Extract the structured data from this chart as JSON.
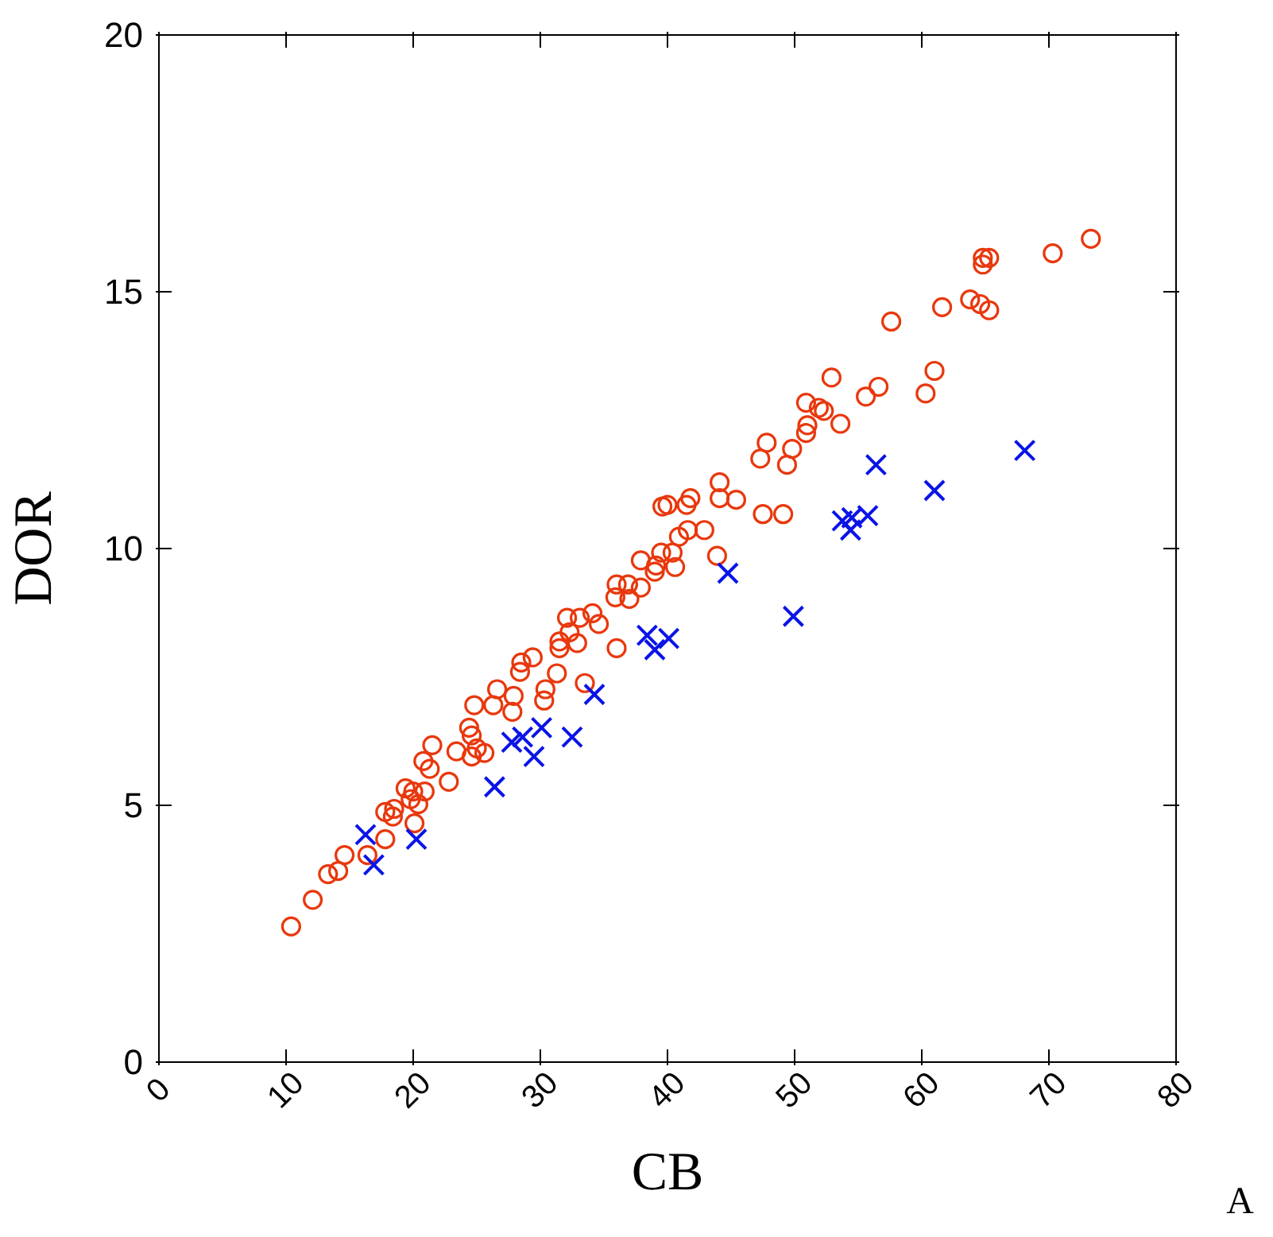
{
  "chart_data": {
    "type": "scatter",
    "xlabel": "CB",
    "ylabel": "DOR",
    "annotations": [
      "A"
    ],
    "xlim": [
      0,
      80
    ],
    "xticks": [
      0,
      10,
      20,
      30,
      40,
      50,
      60,
      70,
      80
    ],
    "ylim": [
      0,
      20
    ],
    "yticks": [
      0,
      5,
      10,
      15,
      20
    ],
    "series": [
      {
        "color": "#e8380d",
        "marker": "circle",
        "x": [
          10.4,
          12.1,
          13.3,
          14.1,
          14.6,
          16.4,
          17.8,
          17.8,
          18.4,
          18.5,
          19.4,
          20.0,
          19.8,
          20.4,
          20.1,
          20.9,
          22.8,
          20.8,
          21.5,
          21.3,
          23.4,
          24.6,
          25.6,
          24.4,
          24.6,
          25.0,
          24.8,
          26.6,
          27.9,
          27.8,
          26.3,
          28.4,
          28.5,
          29.4,
          31.3,
          30.4,
          30.3,
          33.5,
          31.5,
          31.5,
          32.9,
          36.0,
          32.1,
          33.1,
          34.1,
          34.6,
          32.3,
          36.0,
          36.9,
          37.9,
          35.9,
          37.0,
          37.9,
          39.1,
          39.5,
          40.4,
          40.6,
          39.0,
          40.9,
          41.6,
          42.9,
          43.9,
          39.6,
          40.0,
          41.5,
          41.8,
          44.1,
          44.1,
          45.4,
          47.5,
          49.1,
          47.8,
          47.3,
          49.8,
          49.4,
          50.9,
          51.0,
          50.9,
          51.9,
          52.3,
          53.6,
          52.9,
          55.6,
          56.6,
          57.6,
          60.3,
          61.0,
          61.6,
          63.8,
          64.6,
          65.3,
          64.8,
          65.3,
          64.8,
          70.3,
          73.3
        ],
        "values": [
          2.64,
          3.16,
          3.66,
          3.72,
          4.03,
          4.03,
          4.34,
          4.87,
          4.78,
          4.93,
          5.33,
          5.27,
          5.12,
          5.02,
          4.65,
          5.27,
          5.46,
          5.86,
          6.17,
          5.71,
          6.05,
          5.95,
          6.02,
          6.51,
          6.36,
          6.11,
          6.95,
          7.26,
          7.13,
          6.82,
          6.95,
          7.6,
          7.78,
          7.88,
          7.57,
          7.26,
          7.04,
          7.38,
          8.19,
          8.06,
          8.16,
          8.06,
          8.65,
          8.65,
          8.74,
          8.53,
          8.37,
          9.3,
          9.3,
          9.24,
          9.05,
          9.02,
          9.77,
          9.67,
          9.92,
          9.92,
          9.64,
          9.55,
          10.23,
          10.36,
          10.36,
          9.86,
          10.82,
          10.85,
          10.85,
          10.98,
          11.29,
          10.98,
          10.95,
          10.67,
          10.67,
          12.06,
          11.75,
          11.94,
          11.63,
          12.25,
          12.4,
          12.84,
          12.74,
          12.68,
          12.43,
          13.33,
          12.96,
          13.15,
          14.42,
          13.02,
          13.46,
          14.7,
          14.85,
          14.76,
          14.64,
          15.66,
          15.66,
          15.53,
          15.75,
          16.03
        ]
      },
      {
        "color": "#0a14e6",
        "marker": "cross",
        "x": [
          16.25,
          16.9,
          20.25,
          26.4,
          27.75,
          28.6,
          29.5,
          30.1,
          32.5,
          34.25,
          38.4,
          39.0,
          40.1,
          44.75,
          49.9,
          53.75,
          54.4,
          54.5,
          55.75,
          56.4,
          61.0,
          68.1
        ],
        "values": [
          4.43,
          3.84,
          4.34,
          5.36,
          6.23,
          6.33,
          5.95,
          6.51,
          6.33,
          7.16,
          8.31,
          8.03,
          8.25,
          9.52,
          8.68,
          10.54,
          10.36,
          10.6,
          10.64,
          11.63,
          11.13,
          11.91
        ]
      }
    ]
  }
}
